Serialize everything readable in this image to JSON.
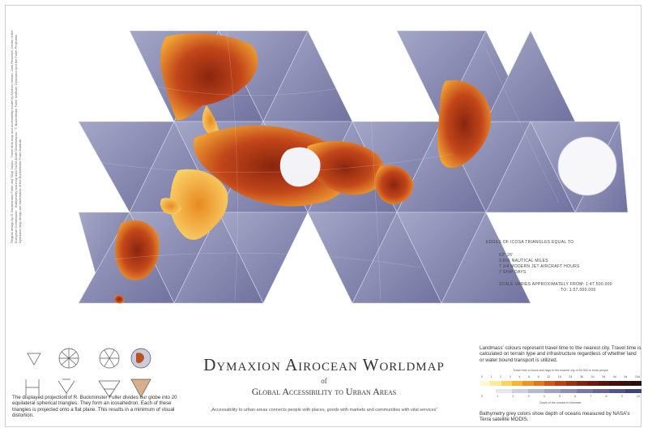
{
  "title": "Dymaxion Airocean Worldmap",
  "of": "of",
  "subtitle": "Global Accessibility to Urban Areas",
  "quote": "„Accessability to urban areas connects people with places, goods with markets and communities with vital services“",
  "description": "The displayed projection of R. Buckminster Fuller divides our globe into 20 equilateral spherical triangles. They form an icosahedron. Each of these triangles is projected onto a flat plane. This results in a minimum of visual distortion.",
  "credit": "Original design by R. Buckminster Fuller and Shoji Sadao · Travel time map and accessibility model by Andrew Nelson, Joint Research Centre of the European Commission · Bathymetry and map data NASA Earth Observations · © Buckminster Fuller Institute. Dymaxion and the Fuller Projection Dymaxion Map design are trademarks of the Buckminster Fuller Institute.",
  "edges": {
    "heading": "Edges of icosa triangles equal to",
    "lines": [
      "63° 26'",
      "3.806 nautical miles",
      "7 3/4 modern jet aircraft hours",
      "7 ship days"
    ],
    "scale_label": "Scale varies approximately from: 1:47.500.000",
    "scale_to": "to: 1:57.000.000"
  },
  "legend": {
    "landmass_text": "Landmass' colours represent travel time to the nearest city. Travel time is calculated on terrain type and infrastructure regardless of whether land or water bound transport is utilized.",
    "travel_caption": "Travel time in hours and days to the nearest city of 50,000 or more people",
    "travel_ticks": [
      "0",
      "1",
      "2",
      "3",
      "4",
      "6",
      "8",
      "12",
      "18",
      "24",
      "36",
      "2d",
      "3d",
      "4d",
      "5d",
      "10d"
    ],
    "travel_colors": [
      "#fff7d6",
      "#fde99a",
      "#fbd45f",
      "#f7b536",
      "#ef9322",
      "#e2741b",
      "#cf5717",
      "#b84015",
      "#9e2f12",
      "#842410",
      "#6b1c0e",
      "#56160c",
      "#46120b",
      "#3a100a",
      "#2e0c08"
    ],
    "depth_caption": "Depth of the oceans in kilometer",
    "depth_ticks": [
      "0",
      "1",
      "2",
      "3",
      "4",
      "5",
      "6",
      "7",
      "8",
      "9",
      "10"
    ],
    "depth_colors": [
      "#ffffff",
      "#e6e6ee",
      "#cfd0de",
      "#b8b9cf",
      "#a2a3c0",
      "#8d8eb1",
      "#7879a3",
      "#656695",
      "#535487",
      "#42437a"
    ],
    "bathymetry_text": "Bathymetry grey colors show depth of oceans measured by NASA's Terra satellite MODIS."
  },
  "colors": {
    "ocean": "#8e90b7",
    "land_light": "#f6b13a",
    "land_dark": "#7a1c0c",
    "ice": "#ffffff"
  }
}
